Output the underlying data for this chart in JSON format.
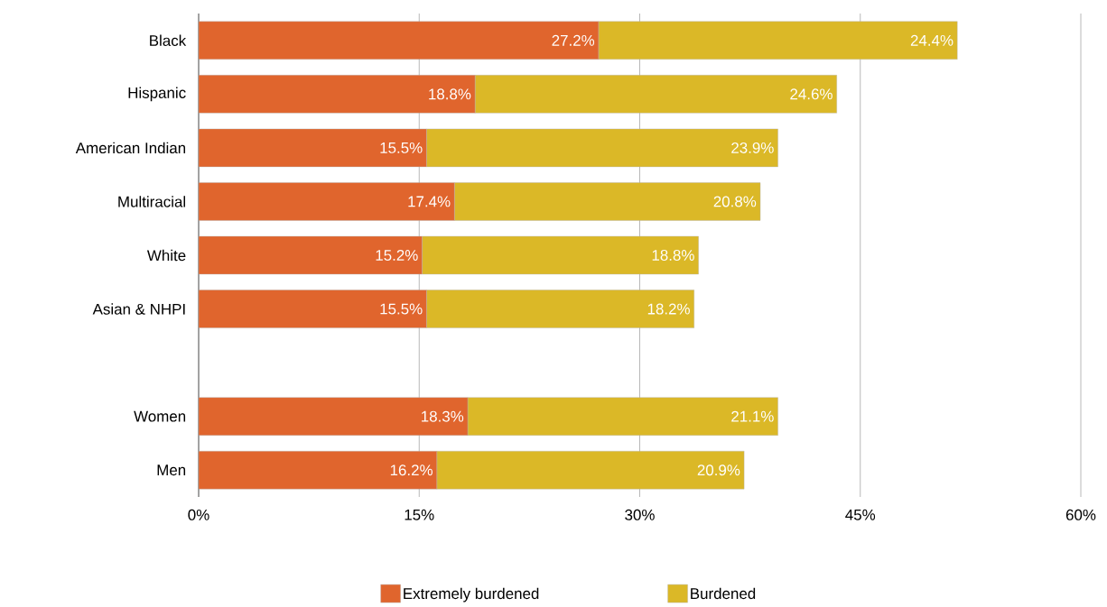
{
  "chart_data": {
    "type": "bar",
    "orientation": "horizontal",
    "stacked": true,
    "categories": [
      "Black",
      "Hispanic",
      "American Indian",
      "Multiracial",
      "White",
      "Asian & NHPI",
      null,
      "Women",
      "Men"
    ],
    "series": [
      {
        "name": "Extremely burdened",
        "color": "#e0652d",
        "values": [
          27.2,
          18.8,
          15.5,
          17.4,
          15.2,
          15.5,
          null,
          18.3,
          16.2
        ],
        "value_labels": [
          "27.2%",
          "18.8%",
          "15.5%",
          "17.4%",
          "15.2%",
          "15.5%",
          null,
          "18.3%",
          "16.2%"
        ]
      },
      {
        "name": "Burdened",
        "color": "#dbb827",
        "values": [
          24.4,
          24.6,
          23.9,
          20.8,
          18.8,
          18.2,
          null,
          21.1,
          20.9
        ],
        "value_labels": [
          "24.4%",
          "24.6%",
          "23.9%",
          "20.8%",
          "18.8%",
          "18.2%",
          null,
          "21.1%",
          "20.9%"
        ]
      }
    ],
    "xlim": [
      0,
      60
    ],
    "xticks": [
      {
        "value": 0,
        "label": "0%"
      },
      {
        "value": 15,
        "label": "15%"
      },
      {
        "value": 30,
        "label": "30%"
      },
      {
        "value": 45,
        "label": "45%"
      },
      {
        "value": 60,
        "label": "60%"
      }
    ],
    "grid": "x",
    "legend": "bottom"
  }
}
